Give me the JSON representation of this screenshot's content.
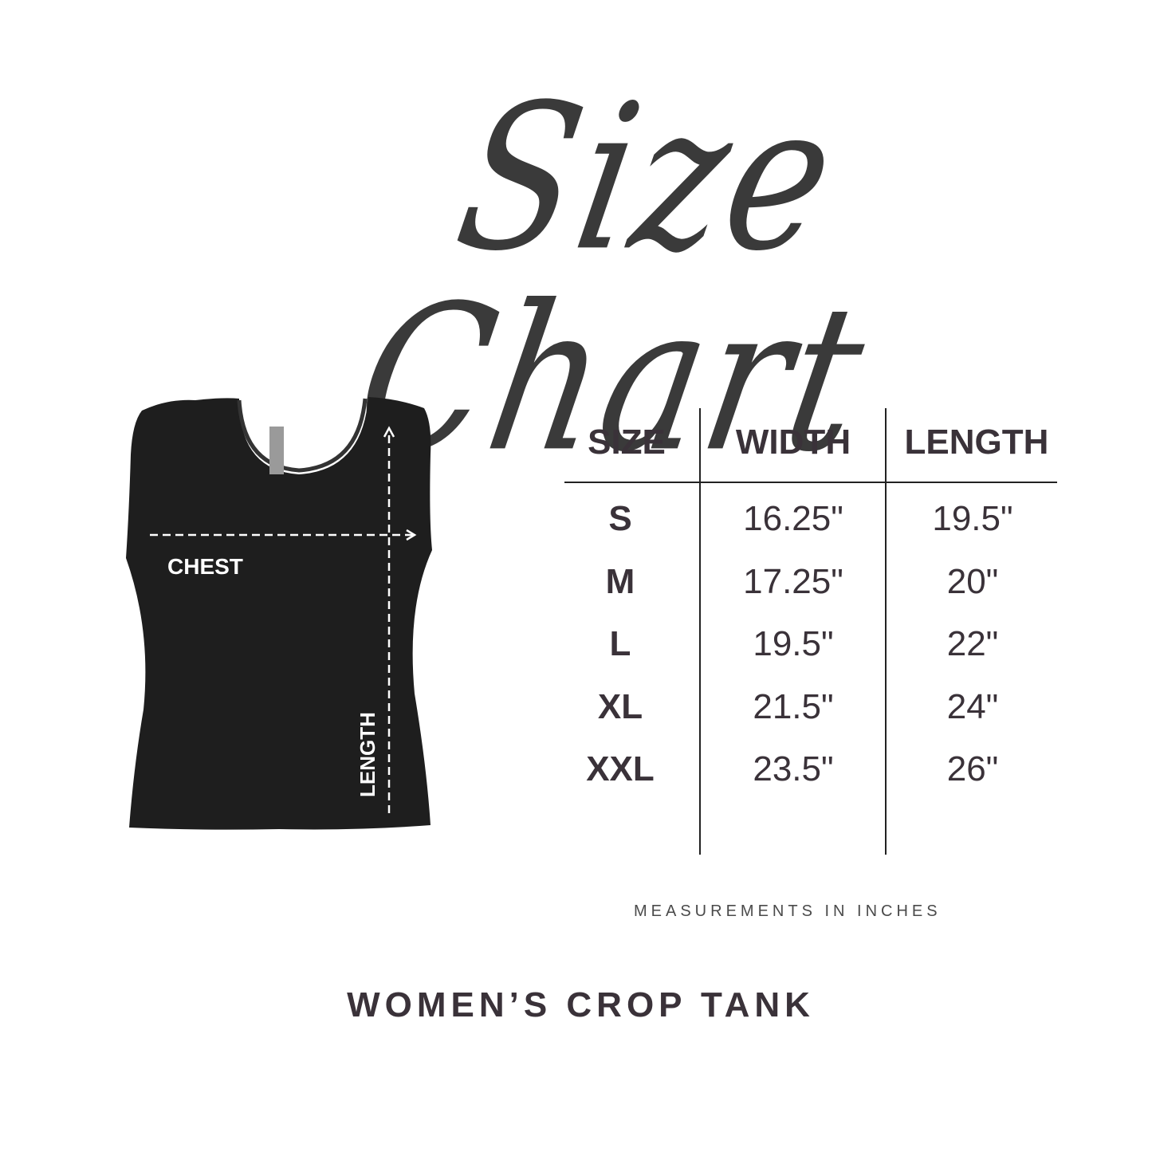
{
  "title": "Size Chart",
  "garment": {
    "chest_label": "CHEST",
    "length_label": "LENGTH",
    "color": "#1e1e1e"
  },
  "table": {
    "headers": [
      "SIZE",
      "WIDTH",
      "LENGTH"
    ],
    "rows": [
      [
        "S",
        "16.25\"",
        "19.5\""
      ],
      [
        "M",
        "17.25\"",
        "20\""
      ],
      [
        "L",
        "19.5\"",
        "22\""
      ],
      [
        "XL",
        "21.5\"",
        "24\""
      ],
      [
        "XXL",
        "23.5\"",
        "26\""
      ]
    ]
  },
  "note": "MEASUREMENTS IN INCHES",
  "product_name": "WOMEN’S CROP TANK",
  "text_color": "#3a3239"
}
